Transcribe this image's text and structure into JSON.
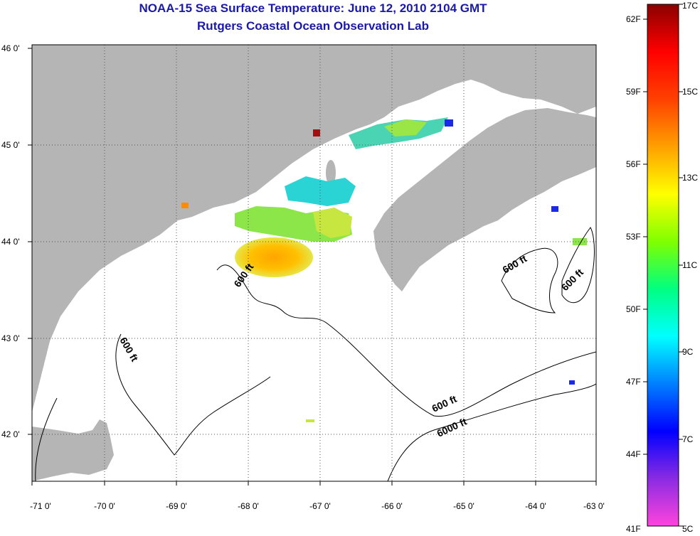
{
  "title": {
    "line1": "NOAA-15 Sea Surface Temperature:  June 12, 2010 2104 GMT",
    "line2": "Rutgers Coastal Ocean Observation Lab"
  },
  "map": {
    "lon_ticks": [
      "-71 0'",
      "-70 0'",
      "-69 0'",
      "-68 0'",
      "-67 0'",
      "-66 0'",
      "-65 0'",
      "-64 0'",
      "-63 0'"
    ],
    "lat_ticks": [
      "46 0'",
      "45 0'",
      "44 0'",
      "43 0'",
      "42 0'"
    ],
    "depth_labels": [
      "600 ft",
      "600 ft",
      "600 ft",
      "600 ft",
      "600 ft",
      "6000 ft"
    ],
    "colors": {
      "land": "#b5b5b5",
      "water": "#ffffff",
      "grid": "#555555"
    }
  },
  "colorbar": {
    "f_labels": [
      "62F",
      "59F",
      "56F",
      "53F",
      "50F",
      "47F",
      "44F",
      "41F"
    ],
    "c_labels": [
      "17C",
      "15C",
      "13C",
      "11C",
      "9C",
      "7C",
      "5C"
    ],
    "stops": [
      "#ff44dd",
      "#8a2be2",
      "#0000ff",
      "#0080ff",
      "#00ffff",
      "#00ff80",
      "#80ff00",
      "#ffff00",
      "#ffa000",
      "#ff4000",
      "#ff0000",
      "#8b0000"
    ]
  }
}
